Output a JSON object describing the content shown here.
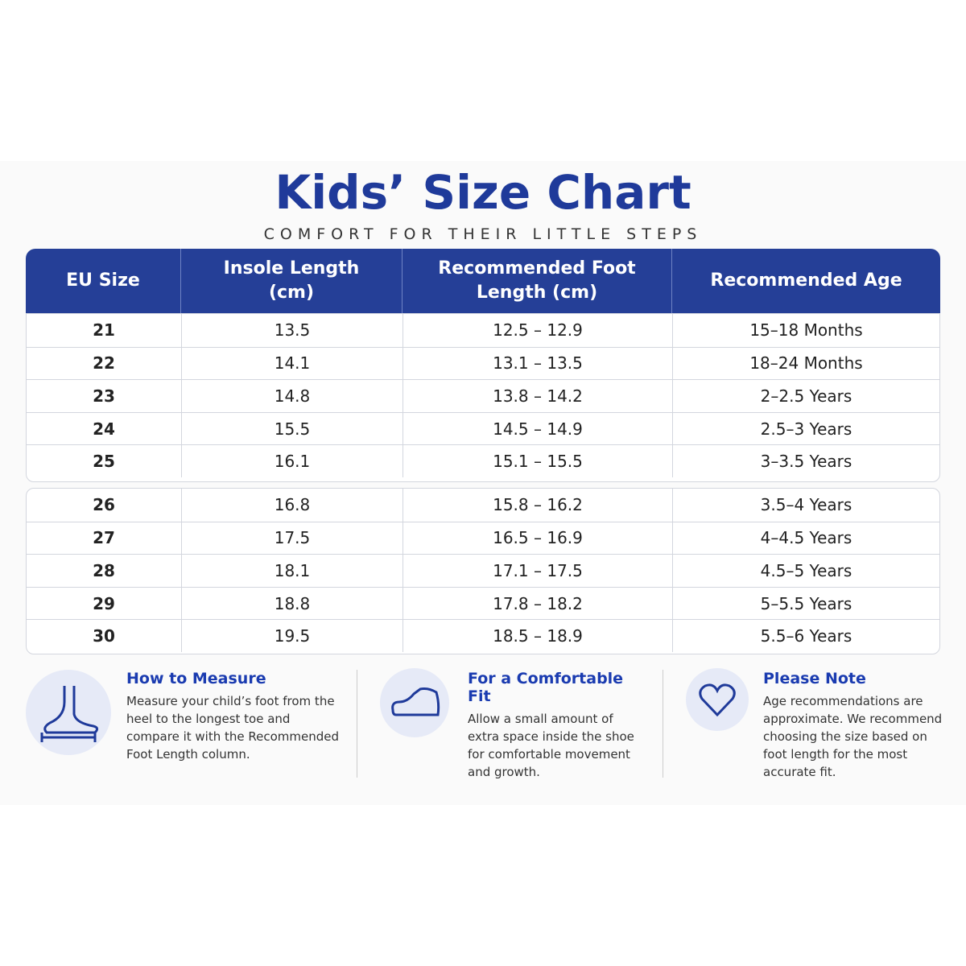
{
  "header": {
    "title": "Kids’ Size Chart",
    "subtitle": "COMFORT FOR THEIR LITTLE STEPS"
  },
  "table": {
    "columns": [
      "EU Size",
      "Insole Length (cm)",
      "Recommended Foot Length (cm)",
      "Recommended Age"
    ],
    "groups": [
      [
        [
          "21",
          "13.5",
          "12.5 – 12.9",
          "15–18 Months"
        ],
        [
          "22",
          "14.1",
          "13.1 – 13.5",
          "18–24 Months"
        ],
        [
          "23",
          "14.8",
          "13.8 – 14.2",
          "2–2.5 Years"
        ],
        [
          "24",
          "15.5",
          "14.5 – 14.9",
          "2.5–3 Years"
        ],
        [
          "25",
          "16.1",
          "15.1 – 15.5",
          "3–3.5 Years"
        ]
      ],
      [
        [
          "26",
          "16.8",
          "15.8 – 16.2",
          "3.5–4 Years"
        ],
        [
          "27",
          "17.5",
          "16.5 – 16.9",
          "4–4.5 Years"
        ],
        [
          "28",
          "18.1",
          "17.1 – 17.5",
          "4.5–5 Years"
        ],
        [
          "29",
          "18.8",
          "17.8 – 18.2",
          "5–5.5 Years"
        ],
        [
          "30",
          "19.5",
          "18.5 – 18.9",
          "5.5–6 Years"
        ]
      ]
    ]
  },
  "notes": [
    {
      "title": "How to Measure",
      "text": "Measure your child’s foot from the heel to the longest toe and compare it with the Recommended Foot Length column."
    },
    {
      "title": "For a Comfortable Fit",
      "text": "Allow a small amount of extra space inside the shoe for comfortable movement and growth."
    },
    {
      "title": "Please Note",
      "text": "Age recommendations are approximate. We recommend choosing the size based on foot length for the most accurate fit."
    }
  ]
}
